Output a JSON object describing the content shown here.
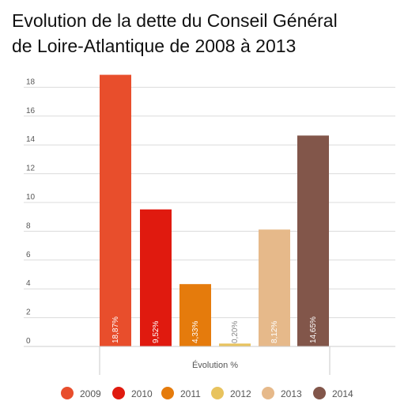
{
  "title_lines": [
    "Evolution de la dette du Conseil Général",
    "de Loire-Atlantique de 2008 à 2013"
  ],
  "chart_data": {
    "type": "bar",
    "title": "Evolution de la dette du Conseil Général de Loire-Atlantique de 2008 à 2013",
    "xlabel": "Évolution %",
    "ylabel": "",
    "ylim": [
      0,
      19
    ],
    "yticks": [
      0,
      2,
      4,
      6,
      8,
      10,
      12,
      14,
      16,
      18
    ],
    "grid": true,
    "legend_position": "bottom",
    "series": [
      {
        "name": "2009",
        "value": 18.87,
        "label": "18,87%",
        "color": "#e84e2c"
      },
      {
        "name": "2010",
        "value": 9.52,
        "label": "9,52%",
        "color": "#e01a0f"
      },
      {
        "name": "2011",
        "value": 4.33,
        "label": "4,33%",
        "color": "#e57b0c"
      },
      {
        "name": "2012",
        "value": 0.2,
        "label": "0,20%",
        "color": "#e8c35e"
      },
      {
        "name": "2013",
        "value": 8.12,
        "label": "8,12%",
        "color": "#e6b98a"
      },
      {
        "name": "2014",
        "value": 14.65,
        "label": "14,65%",
        "color": "#82564a"
      }
    ]
  }
}
